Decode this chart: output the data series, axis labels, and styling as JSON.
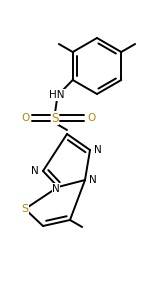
{
  "bg_color": "#ffffff",
  "bond_color": "#000000",
  "n_color": "#000000",
  "s_color": "#b8860b",
  "o_color": "#b8860b",
  "lw": 1.4,
  "figsize": [
    1.55,
    2.91
  ],
  "dpi": 100,
  "xlim": [
    0,
    155
  ],
  "ylim": [
    0,
    291
  ]
}
